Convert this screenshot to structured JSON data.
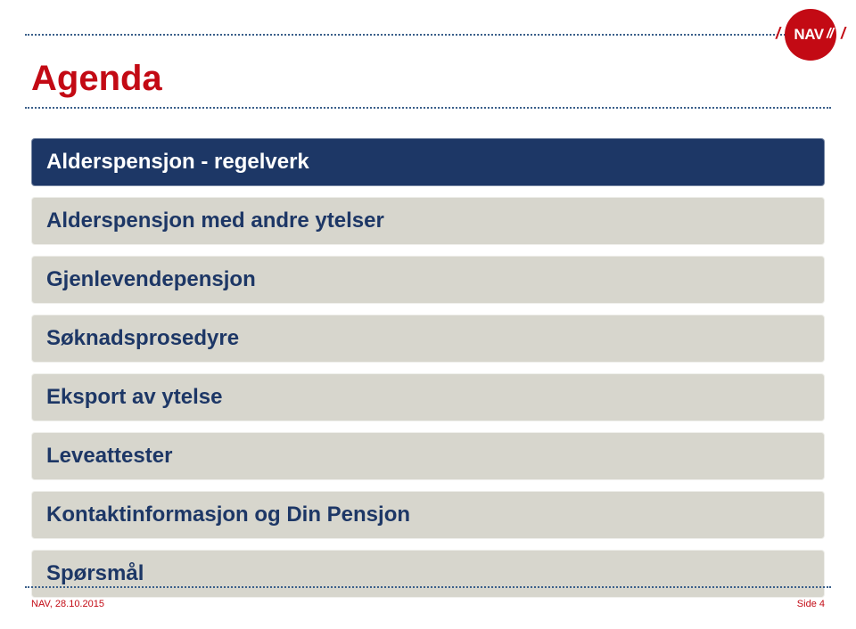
{
  "colors": {
    "brand": "#c30a14",
    "accent": "#3a5f8a",
    "active_bg": "#1d3766",
    "active_fg": "#ffffff",
    "inactive_bg": "#d7d6cd",
    "inactive_fg": "#1d3766",
    "background": "#ffffff"
  },
  "logo": {
    "text": "NAV",
    "inner_slashes": "//",
    "outer_slash": "/"
  },
  "title": "Agenda",
  "agenda": {
    "items": [
      {
        "label": "Alderspensjon - regelverk",
        "active": true
      },
      {
        "label": "Alderspensjon med andre ytelser",
        "active": false
      },
      {
        "label": "Gjenlevendepensjon",
        "active": false
      },
      {
        "label": "Søknadsprosedyre",
        "active": false
      },
      {
        "label": "Eksport av ytelse",
        "active": false
      },
      {
        "label": "Leveattester",
        "active": false
      },
      {
        "label": "Kontaktinformasjon og Din Pensjon",
        "active": false
      },
      {
        "label": "Spørsmål",
        "active": false
      }
    ]
  },
  "footer": {
    "left": "NAV, 28.10.2015",
    "right": "Side 4"
  },
  "typography": {
    "title_fontsize": 40,
    "item_fontsize": 24,
    "footer_fontsize": 11
  }
}
